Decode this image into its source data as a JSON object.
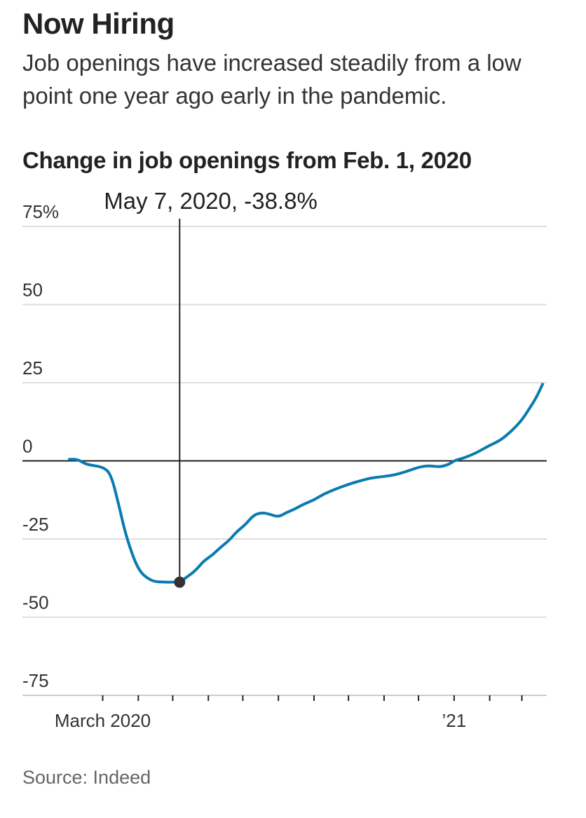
{
  "headline": "Now Hiring",
  "subhead": "Job openings have increased steadily from a low point one year ago early in the pandemic.",
  "source": "Source: Indeed",
  "colors": {
    "line": "#0a7bb0",
    "grid": "#dddddd",
    "axis": "#222222",
    "marker": "#333333"
  },
  "chart_data": {
    "type": "line",
    "title": "Change in job openings from Feb. 1, 2020",
    "xlabel": "",
    "ylabel": "",
    "y_ticks": [
      "75%",
      "50",
      "25",
      "0",
      "-25",
      "-50",
      "-75"
    ],
    "y_tick_values": [
      75,
      50,
      25,
      0,
      -25,
      -50,
      -75
    ],
    "ylim": [
      -75,
      75
    ],
    "xlim": [
      "2020-02-01",
      "2021-03-19"
    ],
    "x_tick_dates": [
      "2020-03-01",
      "2020-04-01",
      "2020-05-01",
      "2020-06-01",
      "2020-07-01",
      "2020-08-01",
      "2020-09-01",
      "2020-10-01",
      "2020-11-01",
      "2020-12-01",
      "2021-01-01",
      "2021-02-01",
      "2021-03-01"
    ],
    "x_labels": [
      {
        "date": "2020-03-01",
        "label": "March 2020"
      },
      {
        "date": "2021-01-01",
        "label": "’21"
      }
    ],
    "grid": true,
    "annotation": {
      "date": "2020-05-07",
      "value": -38.8,
      "label": "May 7, 2020, -38.8%"
    },
    "series": [
      {
        "x": [
          "2020-02-01",
          "2020-02-08",
          "2020-02-15",
          "2020-02-22",
          "2020-03-01",
          "2020-03-08",
          "2020-03-15",
          "2020-03-20",
          "2020-03-25",
          "2020-03-30",
          "2020-04-04",
          "2020-04-09",
          "2020-04-14",
          "2020-04-19",
          "2020-04-24",
          "2020-04-29",
          "2020-05-07",
          "2020-05-14",
          "2020-05-21",
          "2020-05-28",
          "2020-06-05",
          "2020-06-12",
          "2020-06-19",
          "2020-06-26",
          "2020-07-03",
          "2020-07-10",
          "2020-07-17",
          "2020-07-24",
          "2020-08-01",
          "2020-08-08",
          "2020-08-15",
          "2020-08-22",
          "2020-09-01",
          "2020-09-10",
          "2020-09-20",
          "2020-10-01",
          "2020-10-10",
          "2020-10-20",
          "2020-11-01",
          "2020-11-10",
          "2020-11-20",
          "2020-12-01",
          "2020-12-10",
          "2020-12-20",
          "2020-12-28",
          "2021-01-01",
          "2021-01-05",
          "2021-01-10",
          "2021-01-20",
          "2021-02-01",
          "2021-02-10",
          "2021-02-20",
          "2021-03-01",
          "2021-03-08",
          "2021-03-14",
          "2021-03-19"
        ],
        "values": [
          0.5,
          0.5,
          -1.0,
          -1.5,
          -2.0,
          -4.0,
          -14.0,
          -22.0,
          -28.0,
          -33.0,
          -36.0,
          -37.5,
          -38.5,
          -38.7,
          -38.8,
          -38.8,
          -38.8,
          -37.0,
          -35.0,
          -32.0,
          -30.0,
          -27.5,
          -25.5,
          -22.5,
          -20.5,
          -17.5,
          -16.5,
          -17.0,
          -18.0,
          -16.5,
          -15.5,
          -14.0,
          -12.5,
          -10.5,
          -9.0,
          -7.5,
          -6.5,
          -5.5,
          -5.0,
          -4.5,
          -3.5,
          -2.0,
          -1.5,
          -2.0,
          -1.0,
          0.0,
          0.5,
          1.0,
          2.5,
          5.0,
          6.5,
          9.5,
          13.0,
          17.0,
          20.5,
          24.5
        ]
      }
    ]
  }
}
